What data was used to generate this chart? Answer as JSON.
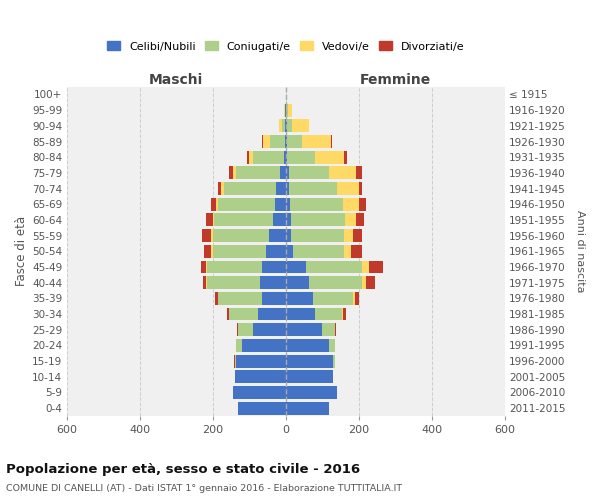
{
  "age_groups": [
    "0-4",
    "5-9",
    "10-14",
    "15-19",
    "20-24",
    "25-29",
    "30-34",
    "35-39",
    "40-44",
    "45-49",
    "50-54",
    "55-59",
    "60-64",
    "65-69",
    "70-74",
    "75-79",
    "80-84",
    "85-89",
    "90-94",
    "95-99",
    "100+"
  ],
  "birth_years": [
    "2011-2015",
    "2006-2010",
    "2001-2005",
    "1996-2000",
    "1991-1995",
    "1986-1990",
    "1981-1985",
    "1976-1980",
    "1971-1975",
    "1966-1970",
    "1961-1965",
    "1956-1960",
    "1951-1955",
    "1946-1950",
    "1941-1945",
    "1936-1940",
    "1931-1935",
    "1926-1930",
    "1921-1925",
    "1916-1920",
    "≤ 1915"
  ],
  "maschi": {
    "celibi": [
      130,
      145,
      140,
      135,
      120,
      90,
      75,
      65,
      70,
      65,
      55,
      45,
      35,
      30,
      25,
      15,
      5,
      3,
      2,
      1,
      0
    ],
    "coniugati": [
      0,
      0,
      0,
      5,
      15,
      40,
      80,
      120,
      145,
      150,
      145,
      155,
      160,
      155,
      145,
      120,
      85,
      40,
      8,
      2,
      0
    ],
    "vedovi": [
      0,
      0,
      0,
      0,
      0,
      0,
      0,
      1,
      2,
      3,
      4,
      4,
      4,
      5,
      6,
      8,
      10,
      20,
      8,
      1,
      0
    ],
    "divorziati": [
      0,
      0,
      0,
      1,
      1,
      2,
      5,
      8,
      10,
      15,
      20,
      25,
      20,
      15,
      10,
      12,
      5,
      2,
      1,
      0,
      0
    ]
  },
  "femmine": {
    "nubili": [
      120,
      140,
      130,
      130,
      120,
      100,
      80,
      75,
      65,
      55,
      20,
      15,
      14,
      12,
      10,
      8,
      5,
      5,
      3,
      2,
      0
    ],
    "coniugate": [
      0,
      0,
      0,
      5,
      15,
      35,
      75,
      110,
      145,
      155,
      140,
      145,
      150,
      145,
      130,
      110,
      75,
      40,
      15,
      5,
      0
    ],
    "vedove": [
      0,
      0,
      0,
      0,
      0,
      1,
      2,
      5,
      10,
      18,
      20,
      25,
      30,
      45,
      60,
      75,
      80,
      80,
      45,
      10,
      0
    ],
    "divorziate": [
      0,
      0,
      0,
      0,
      1,
      2,
      8,
      10,
      25,
      40,
      30,
      25,
      20,
      18,
      10,
      15,
      8,
      2,
      1,
      0,
      0
    ]
  },
  "colors": {
    "celibi": "#4472C4",
    "coniugati": "#AECF8A",
    "vedovi": "#FFD966",
    "divorziati": "#C0392B"
  },
  "xlim": 600,
  "title": "Popolazione per età, sesso e stato civile - 2016",
  "subtitle": "COMUNE DI CANELLI (AT) - Dati ISTAT 1° gennaio 2016 - Elaborazione TUTTITALIA.IT",
  "ylabel_left": "Fasce di età",
  "ylabel_right": "Anni di nascita",
  "xlabel_left": "Maschi",
  "xlabel_right": "Femmine",
  "bg_color": "#f0f0f0",
  "grid_color": "#cccccc"
}
